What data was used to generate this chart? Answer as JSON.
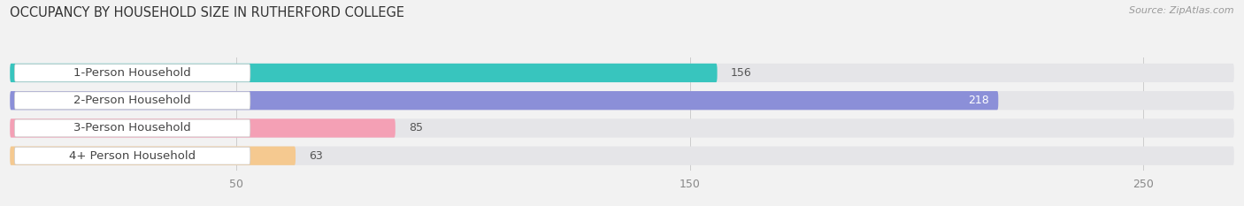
{
  "title": "OCCUPANCY BY HOUSEHOLD SIZE IN RUTHERFORD COLLEGE",
  "source": "Source: ZipAtlas.com",
  "categories": [
    "1-Person Household",
    "2-Person Household",
    "3-Person Household",
    "4+ Person Household"
  ],
  "values": [
    156,
    218,
    85,
    63
  ],
  "bar_colors": [
    "#38c5be",
    "#8b8fd8",
    "#f4a0b5",
    "#f5c990"
  ],
  "xlim": [
    0,
    270
  ],
  "xticks": [
    50,
    150,
    250
  ],
  "background_color": "#f2f2f2",
  "bar_bg_color": "#e5e5e8",
  "title_fontsize": 10.5,
  "label_fontsize": 9.5,
  "value_fontsize": 9
}
